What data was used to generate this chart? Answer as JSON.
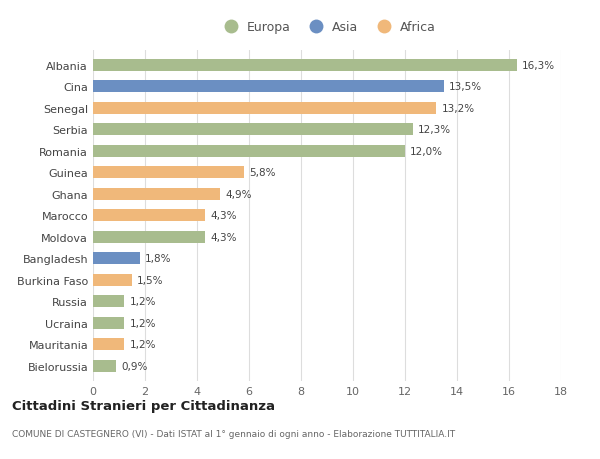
{
  "countries": [
    "Albania",
    "Cina",
    "Senegal",
    "Serbia",
    "Romania",
    "Guinea",
    "Ghana",
    "Marocco",
    "Moldova",
    "Bangladesh",
    "Burkina Faso",
    "Russia",
    "Ucraina",
    "Mauritania",
    "Bielorussia"
  ],
  "values": [
    16.3,
    13.5,
    13.2,
    12.3,
    12.0,
    5.8,
    4.9,
    4.3,
    4.3,
    1.8,
    1.5,
    1.2,
    1.2,
    1.2,
    0.9
  ],
  "labels": [
    "16,3%",
    "13,5%",
    "13,2%",
    "12,3%",
    "12,0%",
    "5,8%",
    "4,9%",
    "4,3%",
    "4,3%",
    "1,8%",
    "1,5%",
    "1,2%",
    "1,2%",
    "1,2%",
    "0,9%"
  ],
  "continents": [
    "Europa",
    "Asia",
    "Africa",
    "Europa",
    "Europa",
    "Africa",
    "Africa",
    "Africa",
    "Europa",
    "Asia",
    "Africa",
    "Europa",
    "Europa",
    "Africa",
    "Europa"
  ],
  "colors": {
    "Europa": "#a8bc8e",
    "Asia": "#6b8fc2",
    "Africa": "#f0b87a"
  },
  "legend_order": [
    "Europa",
    "Asia",
    "Africa"
  ],
  "title": "Cittadini Stranieri per Cittadinanza",
  "subtitle": "COMUNE DI CASTEGNERO (VI) - Dati ISTAT al 1° gennaio di ogni anno - Elaborazione TUTTITALIA.IT",
  "xlim": [
    0,
    18
  ],
  "xticks": [
    0,
    2,
    4,
    6,
    8,
    10,
    12,
    14,
    16,
    18
  ],
  "bg_color": "#ffffff",
  "grid_color": "#dddddd"
}
